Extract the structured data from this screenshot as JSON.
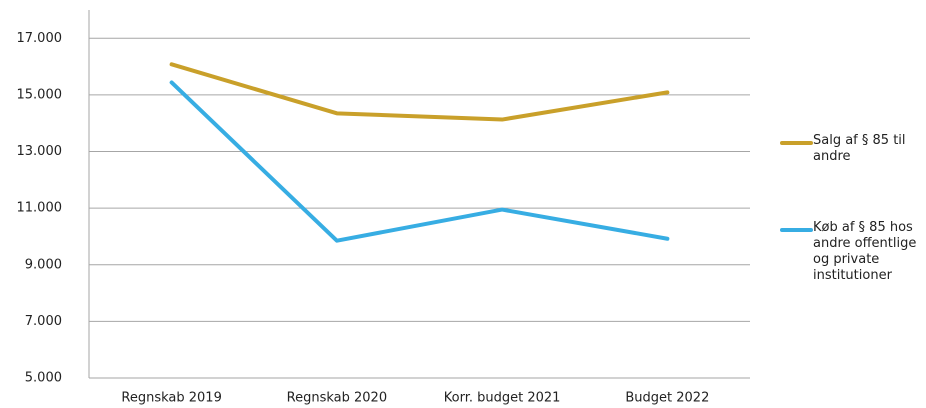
{
  "chart_data": {
    "type": "line",
    "categories": [
      "Regnskab 2019",
      "Regnskab 2020",
      "Korr. budget 2021",
      "Budget 2022"
    ],
    "series": [
      {
        "name": "Salg af § 85 til andre",
        "color": "#c9a02a",
        "values": [
          16080,
          14350,
          14130,
          15090
        ]
      },
      {
        "name": "Køb af § 85 hos andre offentlige og private institutioner",
        "color": "#37ade3",
        "values": [
          15440,
          9850,
          10950,
          9920
        ]
      }
    ],
    "ylim": [
      5000,
      18000
    ],
    "yticks": [
      {
        "value": 5000,
        "label": "5.000"
      },
      {
        "value": 7000,
        "label": "7.000"
      },
      {
        "value": 9000,
        "label": "9.000"
      },
      {
        "value": 11000,
        "label": "11.000"
      },
      {
        "value": 13000,
        "label": "13.000"
      },
      {
        "value": 15000,
        "label": "15.000"
      },
      {
        "value": 17000,
        "label": "17.000"
      }
    ],
    "grid": true,
    "legend": "right"
  }
}
